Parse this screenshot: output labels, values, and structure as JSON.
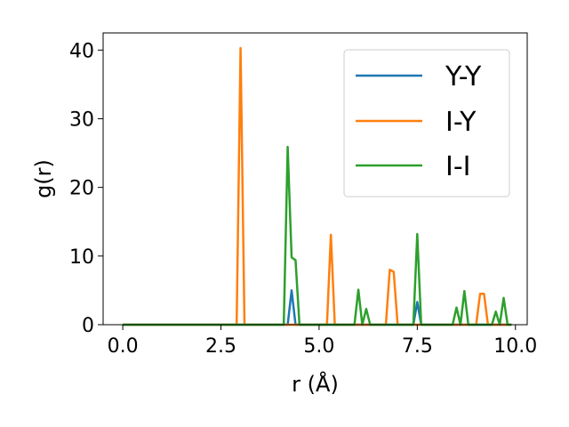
{
  "chart_data": {
    "type": "line",
    "title": "",
    "xlabel": "r (Å)",
    "ylabel": "g(r)",
    "xlim": [
      -0.5,
      10.3
    ],
    "ylim": [
      0,
      42.5
    ],
    "x_ticks": [
      0.0,
      2.5,
      5.0,
      7.5,
      10.0
    ],
    "x_tick_labels": [
      "0.0",
      "2.5",
      "5.0",
      "7.5",
      "10.0"
    ],
    "y_ticks": [
      0,
      10,
      20,
      30,
      40
    ],
    "y_tick_labels": [
      "0",
      "10",
      "20",
      "30",
      "40"
    ],
    "grid": false,
    "legend_position": "top-right",
    "series": [
      {
        "name": "Y-Y",
        "color": "#1f77b4",
        "points": [
          [
            0,
            0
          ],
          [
            4.2,
            0
          ],
          [
            4.3,
            5.0
          ],
          [
            4.4,
            0
          ],
          [
            7.4,
            0
          ],
          [
            7.5,
            3.3
          ],
          [
            7.6,
            0
          ],
          [
            9.9,
            0
          ]
        ]
      },
      {
        "name": "I-Y",
        "color": "#ff7f0e",
        "points": [
          [
            0,
            0
          ],
          [
            2.9,
            0
          ],
          [
            3.0,
            40.3
          ],
          [
            3.1,
            0
          ],
          [
            5.2,
            0
          ],
          [
            5.3,
            13.1
          ],
          [
            5.4,
            0
          ],
          [
            6.7,
            0
          ],
          [
            6.8,
            8.0
          ],
          [
            6.9,
            7.7
          ],
          [
            7.0,
            0
          ],
          [
            9.0,
            0
          ],
          [
            9.1,
            4.5
          ],
          [
            9.2,
            4.5
          ],
          [
            9.3,
            0
          ],
          [
            9.9,
            0
          ]
        ]
      },
      {
        "name": "I-I",
        "color": "#2ca02c",
        "points": [
          [
            0,
            0
          ],
          [
            4.1,
            0
          ],
          [
            4.2,
            25.9
          ],
          [
            4.3,
            9.8
          ],
          [
            4.4,
            9.4
          ],
          [
            4.5,
            0
          ],
          [
            5.9,
            0
          ],
          [
            6.0,
            5.1
          ],
          [
            6.1,
            0
          ],
          [
            6.2,
            2.3
          ],
          [
            6.3,
            0
          ],
          [
            7.4,
            0
          ],
          [
            7.5,
            13.2
          ],
          [
            7.6,
            0
          ],
          [
            8.4,
            0
          ],
          [
            8.5,
            2.5
          ],
          [
            8.6,
            0
          ],
          [
            8.7,
            4.9
          ],
          [
            8.8,
            0
          ],
          [
            9.4,
            0
          ],
          [
            9.5,
            1.9
          ],
          [
            9.6,
            0
          ],
          [
            9.7,
            3.9
          ],
          [
            9.8,
            0
          ],
          [
            9.9,
            0
          ]
        ]
      }
    ]
  }
}
